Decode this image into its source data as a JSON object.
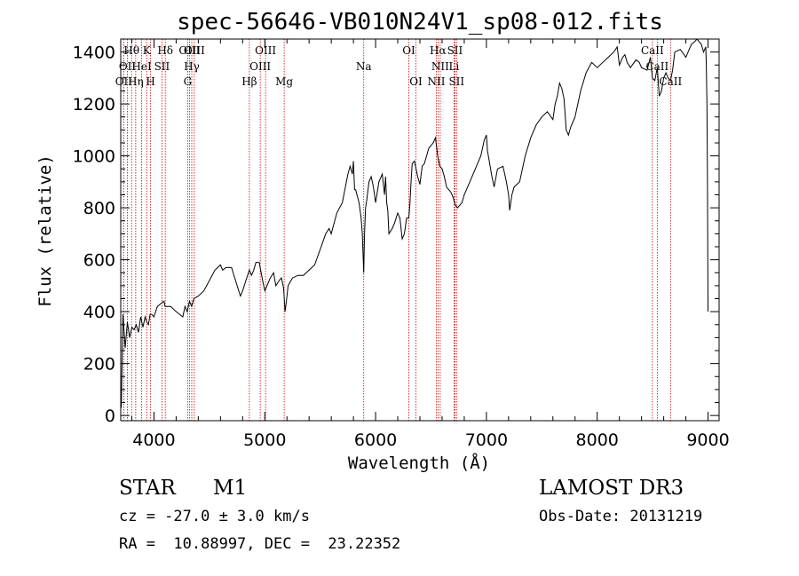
{
  "chart_data": {
    "type": "line",
    "title": "spec-56646-VB010N24V1_sp08-012.fits",
    "xlabel": "Wavelength (Å)",
    "ylabel": "Flux (relative)",
    "xlim": [
      3700,
      9100
    ],
    "ylim": [
      -20,
      1450
    ],
    "x_ticks": [
      4000,
      5000,
      6000,
      7000,
      8000,
      9000
    ],
    "x_tick_labels": [
      "4000",
      "5000",
      "6000",
      "7000",
      "8000",
      "9000"
    ],
    "y_ticks": [
      0,
      200,
      400,
      600,
      800,
      1000,
      1200,
      1400
    ],
    "y_tick_labels": [
      "0",
      "200",
      "400",
      "600",
      "800",
      "1000",
      "1200",
      "1400"
    ],
    "line_color": "#000000",
    "marker_color": "#cc0000",
    "series": [
      {
        "name": "flux",
        "x": [
          3705,
          3720,
          3740,
          3760,
          3780,
          3800,
          3820,
          3840,
          3860,
          3880,
          3900,
          3920,
          3935,
          3950,
          3965,
          3980,
          4000,
          4030,
          4060,
          4090,
          4100,
          4120,
          4150,
          4200,
          4230,
          4260,
          4280,
          4300,
          4320,
          4340,
          4360,
          4400,
          4450,
          4500,
          4550,
          4600,
          4620,
          4650,
          4700,
          4750,
          4780,
          4800,
          4830,
          4861,
          4880,
          4900,
          4920,
          4950,
          4980,
          5000,
          5030,
          5050,
          5080,
          5100,
          5130,
          5150,
          5170,
          5183,
          5195,
          5210,
          5250,
          5300,
          5350,
          5400,
          5450,
          5500,
          5550,
          5580,
          5600,
          5650,
          5700,
          5750,
          5770,
          5790,
          5800,
          5810,
          5820,
          5850,
          5870,
          5880,
          5893,
          5900,
          5910,
          5920,
          5940,
          5960,
          5980,
          6000,
          6030,
          6060,
          6080,
          6090,
          6100,
          6110,
          6120,
          6150,
          6170,
          6200,
          6220,
          6240,
          6260,
          6280,
          6300,
          6310,
          6320,
          6330,
          6350,
          6380,
          6400,
          6420,
          6440,
          6460,
          6480,
          6500,
          6520,
          6540,
          6560,
          6580,
          6600,
          6620,
          6640,
          6660,
          6680,
          6700,
          6720,
          6740,
          6760,
          6780,
          6800,
          6850,
          6900,
          6950,
          6980,
          7000,
          7010,
          7030,
          7050,
          7070,
          7100,
          7150,
          7180,
          7200,
          7210,
          7230,
          7250,
          7300,
          7350,
          7400,
          7450,
          7500,
          7550,
          7600,
          7620,
          7640,
          7660,
          7680,
          7700,
          7720,
          7740,
          7760,
          7800,
          7850,
          7900,
          7950,
          8000,
          8050,
          8100,
          8150,
          8180,
          8200,
          8230,
          8250,
          8270,
          8300,
          8350,
          8380,
          8400,
          8450,
          8480,
          8498,
          8520,
          8542,
          8560,
          8580,
          8600,
          8620,
          8640,
          8662,
          8680,
          8700,
          8750,
          8800,
          8820,
          8850,
          8880,
          8900,
          8920,
          8940,
          8960,
          8980,
          8985,
          8990,
          8995,
          9000
        ],
        "values": [
          30,
          390,
          260,
          360,
          300,
          340,
          330,
          350,
          320,
          380,
          340,
          380,
          360,
          350,
          390,
          390,
          380,
          420,
          430,
          440,
          420,
          420,
          420,
          400,
          390,
          380,
          420,
          400,
          440,
          420,
          450,
          460,
          480,
          520,
          560,
          580,
          560,
          570,
          570,
          500,
          460,
          480,
          520,
          560,
          540,
          560,
          590,
          590,
          520,
          480,
          510,
          530,
          550,
          500,
          520,
          530,
          490,
          400,
          440,
          500,
          530,
          540,
          540,
          560,
          580,
          640,
          700,
          720,
          700,
          780,
          820,
          930,
          960,
          930,
          980,
          870,
          870,
          820,
          760,
          700,
          550,
          700,
          800,
          830,
          900,
          920,
          880,
          820,
          900,
          930,
          850,
          920,
          820,
          790,
          700,
          720,
          740,
          780,
          760,
          680,
          700,
          760,
          760,
          820,
          900,
          970,
          980,
          920,
          890,
          960,
          970,
          1000,
          1030,
          1040,
          1050,
          1070,
          1000,
          960,
          950,
          920,
          880,
          870,
          860,
          840,
          810,
          800,
          810,
          820,
          850,
          900,
          950,
          1000,
          1060,
          1080,
          1020,
          970,
          920,
          880,
          950,
          960,
          900,
          850,
          790,
          850,
          880,
          900,
          1000,
          1070,
          1120,
          1150,
          1170,
          1140,
          1200,
          1230,
          1280,
          1260,
          1220,
          1100,
          1080,
          1110,
          1150,
          1250,
          1320,
          1360,
          1340,
          1360,
          1380,
          1400,
          1420,
          1350,
          1380,
          1390,
          1360,
          1340,
          1370,
          1360,
          1340,
          1330,
          1380,
          1300,
          1290,
          1340,
          1230,
          1250,
          1300,
          1320,
          1300,
          1290,
          1330,
          1400,
          1410,
          1380,
          1400,
          1430,
          1440,
          1450,
          1440,
          1430,
          1400,
          1420,
          1350,
          1200,
          900,
          400
        ]
      }
    ],
    "lines": [
      {
        "name": "OII",
        "wave": 3727,
        "label_row": 2
      },
      {
        "name": "Hθ",
        "wave": 3798,
        "label_row": 0
      },
      {
        "name": "OII",
        "wave": 3760,
        "label_row": 1
      },
      {
        "name": "Hη",
        "wave": 3835,
        "label_row": 2
      },
      {
        "name": "HeI",
        "wave": 3889,
        "label_row": 1
      },
      {
        "name": "K",
        "wave": 3934,
        "label_row": 0
      },
      {
        "name": "H",
        "wave": 3969,
        "label_row": 2
      },
      {
        "name": "SII",
        "wave": 4072,
        "label_row": 1
      },
      {
        "name": "Hδ",
        "wave": 4102,
        "label_row": 0
      },
      {
        "name": "G",
        "wave": 4304,
        "label_row": 2
      },
      {
        "name": "OIII",
        "wave": 4320,
        "label_row": 0
      },
      {
        "name": "Hγ",
        "wave": 4341,
        "label_row": 1
      },
      {
        "name": "OIII",
        "wave": 4364,
        "label_row": 0
      },
      {
        "name": "Hβ",
        "wave": 4861,
        "label_row": 2
      },
      {
        "name": "OIII",
        "wave": 4959,
        "label_row": 1
      },
      {
        "name": "OIII",
        "wave": 5007,
        "label_row": 0
      },
      {
        "name": "Mg",
        "wave": 5175,
        "label_row": 2
      },
      {
        "name": "Na",
        "wave": 5893,
        "label_row": 1
      },
      {
        "name": "OI",
        "wave": 6300,
        "label_row": 0
      },
      {
        "name": "OI",
        "wave": 6364,
        "label_row": 2
      },
      {
        "name": "NII",
        "wave": 6548,
        "label_row": 2
      },
      {
        "name": "Hα",
        "wave": 6563,
        "label_row": 0
      },
      {
        "name": "NII",
        "wave": 6583,
        "label_row": 1
      },
      {
        "name": "Li",
        "wave": 6708,
        "label_row": 1
      },
      {
        "name": "SII",
        "wave": 6716,
        "label_row": 0
      },
      {
        "name": "SII",
        "wave": 6731,
        "label_row": 2
      },
      {
        "name": "CaII",
        "wave": 8498,
        "label_row": 0
      },
      {
        "name": "CaII",
        "wave": 8542,
        "label_row": 1
      },
      {
        "name": "CaII",
        "wave": 8662,
        "label_row": 2
      }
    ]
  },
  "info": {
    "object_class": "STAR",
    "subclass": "M1",
    "survey": "LAMOST DR3",
    "cz": "cz = -27.0 ± 3.0 km/s",
    "obs_date": "Obs-Date: 20131219",
    "coords": "RA =  10.88997, DEC =  23.22352"
  }
}
